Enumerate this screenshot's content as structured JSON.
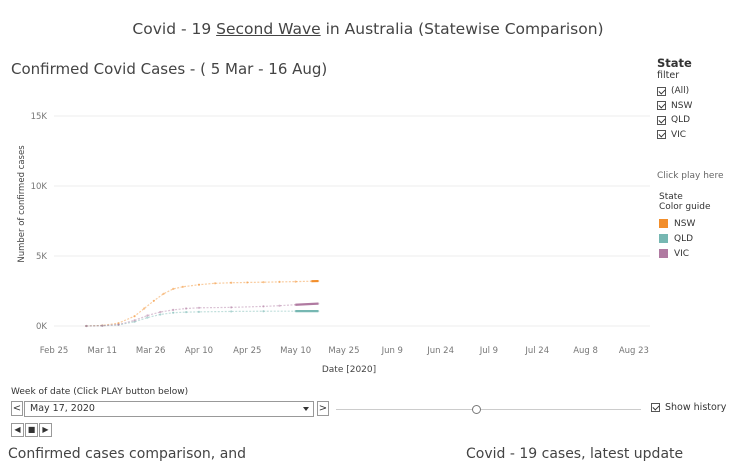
{
  "page": {
    "title_prefix": "Covid - 19 ",
    "title_underlined": "Second Wave",
    "title_suffix": " in Australia (Statewise Comparison)",
    "chart_title": "Confirmed Covid Cases - ( 5 Mar - 16 Aug)"
  },
  "chart_data": {
    "type": "line",
    "title": "Confirmed Covid Cases - ( 5 Mar - 16 Aug)",
    "xlabel": "Date [2020]",
    "ylabel": "Number of confirmed cases",
    "ylim": [
      0,
      17000
    ],
    "yticks": [
      0,
      5000,
      10000,
      15000
    ],
    "ytick_labels": [
      "0K",
      "5K",
      "10K",
      "15K"
    ],
    "x_tick_labels": [
      "Feb 25",
      "Mar 11",
      "Mar 26",
      "Apr 10",
      "Apr 25",
      "May 10",
      "May 25",
      "Jun 9",
      "Jun 24",
      "Jul 9",
      "Jul 24",
      "Aug 8",
      "Aug 23"
    ],
    "x_tick_days": [
      -5,
      10,
      25,
      40,
      55,
      70,
      85,
      100,
      115,
      130,
      145,
      160,
      175
    ],
    "x_range_days": [
      -5,
      180
    ],
    "grid": true,
    "series": [
      {
        "name": "NSW",
        "color": "#F28E2B",
        "x_days": [
          5,
          10,
          15,
          20,
          23,
          26,
          29,
          32,
          35,
          40,
          45,
          50,
          55,
          60,
          65,
          70,
          75,
          77
        ],
        "values": [
          0,
          40,
          200,
          700,
          1250,
          1800,
          2300,
          2650,
          2800,
          2950,
          3050,
          3090,
          3110,
          3130,
          3150,
          3170,
          3200,
          3210
        ]
      },
      {
        "name": "QLD",
        "color": "#76B7B2",
        "x_days": [
          5,
          10,
          15,
          20,
          24,
          28,
          32,
          36,
          40,
          50,
          60,
          70,
          77
        ],
        "values": [
          0,
          20,
          80,
          300,
          600,
          820,
          950,
          990,
          1010,
          1040,
          1055,
          1060,
          1062
        ]
      },
      {
        "name": "VIC",
        "color": "#B07AA1",
        "x_days": [
          5,
          10,
          15,
          20,
          24,
          28,
          32,
          36,
          40,
          50,
          60,
          65,
          70,
          77
        ],
        "values": [
          0,
          20,
          100,
          400,
          750,
          1000,
          1150,
          1250,
          1300,
          1330,
          1400,
          1450,
          1520,
          1600
        ]
      }
    ]
  },
  "legend": {
    "heading": "State",
    "subheading": "filter",
    "items": [
      "(All)",
      "NSW",
      "QLD",
      "VIC"
    ],
    "play_hint": "Click play here",
    "color_heading": "State",
    "color_subheading": "Color guide",
    "colors": [
      {
        "name": "NSW",
        "color": "#F28E2B"
      },
      {
        "name": "QLD",
        "color": "#76B7B2"
      },
      {
        "name": "VIC",
        "color": "#B07AA1"
      }
    ]
  },
  "controls": {
    "week_label": "Week of date (Click PLAY button below)",
    "week_value": "May 17, 2020",
    "show_history": "Show history",
    "slider_value": 0.45
  },
  "bottom": {
    "left_text": "Confirmed cases comparison, and",
    "right_text": "Covid - 19 cases, latest update"
  }
}
